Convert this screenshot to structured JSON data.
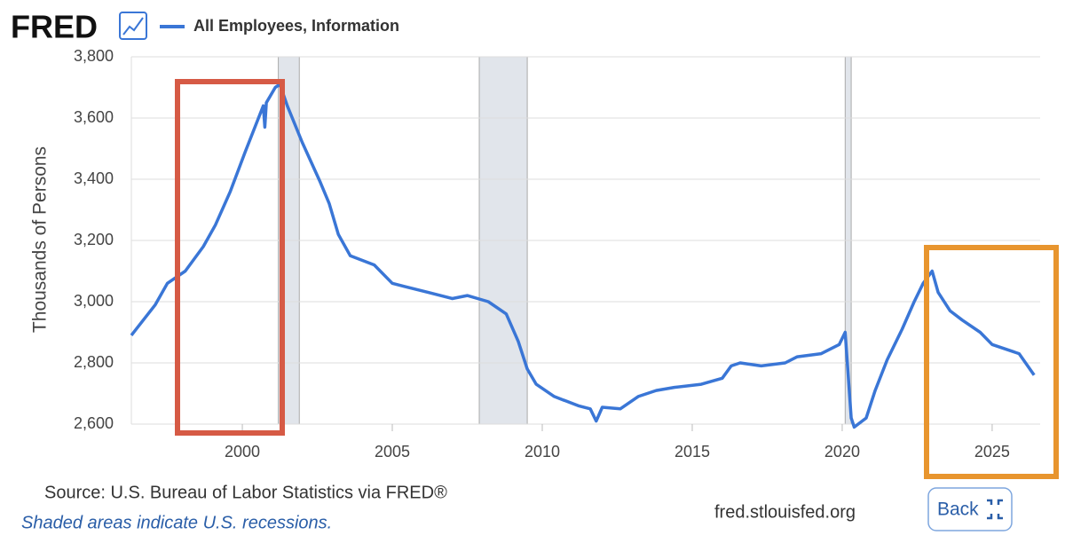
{
  "logo": "FRED",
  "chart_data": {
    "type": "line",
    "y_label": "Thousands of Persons",
    "x": [
      1996.3,
      1997.1,
      1997.5,
      1998.1,
      1998.7,
      1999.1,
      1999.6,
      2000.1,
      2000.5,
      2000.7,
      2000.75,
      2000.8,
      2001.1,
      2001.25,
      2001.5,
      2002.0,
      2002.6,
      2002.9,
      2003.2,
      2003.6,
      2004.4,
      2005.0,
      2005.4,
      2006.2,
      2007.0,
      2007.5,
      2008.2,
      2008.8,
      2009.2,
      2009.5,
      2009.8,
      2010.4,
      2011.2,
      2011.6,
      2011.8,
      2012.0,
      2012.6,
      2013.2,
      2013.8,
      2014.4,
      2015.3,
      2016.0,
      2016.3,
      2016.6,
      2017.3,
      2018.1,
      2018.5,
      2019.3,
      2019.9,
      2020.1,
      2020.3,
      2020.4,
      2020.8,
      2021.1,
      2021.5,
      2022.0,
      2022.4,
      2022.7,
      2023.0,
      2023.2,
      2023.6,
      2024.0,
      2024.6,
      2025.0,
      2025.9,
      2026.4
    ],
    "series": [
      {
        "name": "All Employees, Information",
        "color": "#3a76d6",
        "values": [
          2890,
          2990,
          3060,
          3100,
          3180,
          3250,
          3360,
          3490,
          3590,
          3640,
          3570,
          3650,
          3700,
          3710,
          3640,
          3520,
          3390,
          3320,
          3220,
          3150,
          3120,
          3060,
          3050,
          3030,
          3010,
          3020,
          3000,
          2960,
          2870,
          2780,
          2730,
          2690,
          2660,
          2650,
          2610,
          2655,
          2650,
          2690,
          2710,
          2720,
          2730,
          2750,
          2790,
          2800,
          2790,
          2800,
          2820,
          2830,
          2860,
          2900,
          2620,
          2590,
          2620,
          2710,
          2810,
          2910,
          3000,
          3060,
          3100,
          3030,
          2970,
          2940,
          2900,
          2860,
          2830,
          2760
        ]
      }
    ],
    "recessions": [
      [
        2001.2,
        2001.9
      ],
      [
        2007.9,
        2009.5
      ],
      [
        2020.1,
        2020.3
      ]
    ],
    "xlim": [
      1996.3,
      2026.6
    ],
    "xticks": [
      2000,
      2005,
      2010,
      2015,
      2020,
      2025
    ],
    "ylim": [
      2600,
      3800
    ],
    "yticks": [
      {
        "value": 2600,
        "label": "2,600"
      },
      {
        "value": 2800,
        "label": "2,800"
      },
      {
        "value": 3000,
        "label": "3,000"
      },
      {
        "value": 3200,
        "label": "3,200"
      },
      {
        "value": 3400,
        "label": "3,400"
      },
      {
        "value": 3600,
        "label": "3,600"
      },
      {
        "value": 3800,
        "label": "3,800"
      }
    ],
    "grid": true
  },
  "footer": {
    "source": "Source: U.S. Bureau of Labor Statistics via FRED®",
    "note": "Shaded areas indicate U.S. recessions.",
    "url": "fred.stlouisfed.org",
    "button": "Back"
  }
}
